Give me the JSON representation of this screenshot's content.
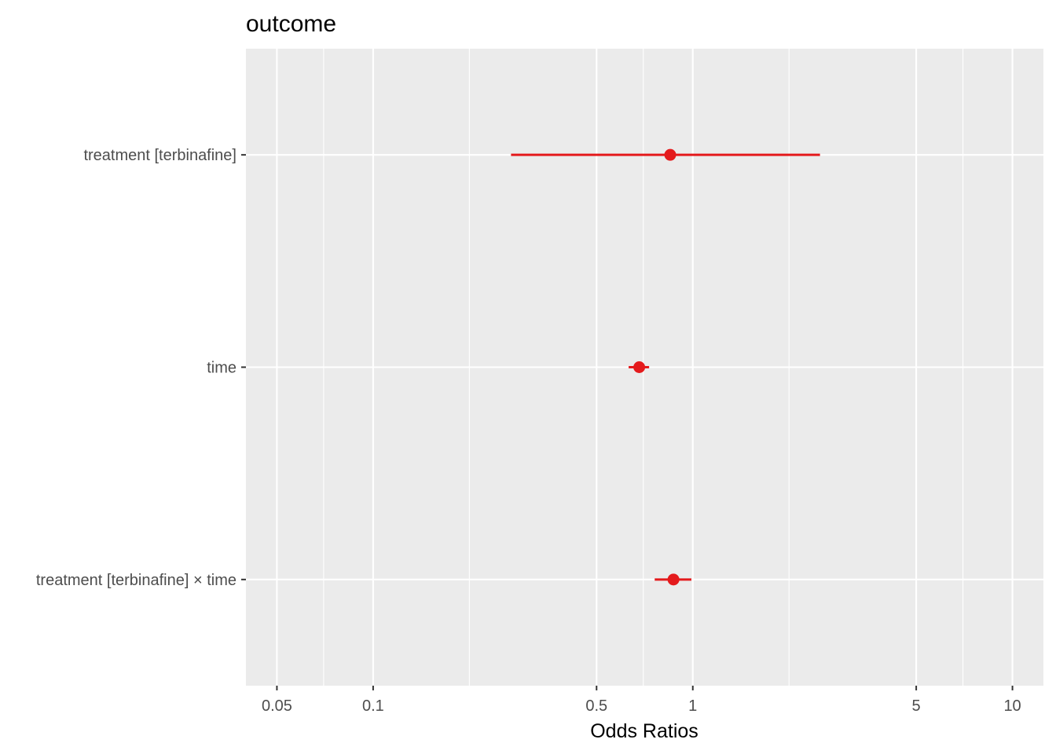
{
  "chart_data": {
    "type": "scatter",
    "subtype": "forest-plot",
    "title": "outcome",
    "xlabel": "Odds Ratios",
    "ylabel": "",
    "x_scale": "log10",
    "xlim": [
      0.04,
      12.5
    ],
    "x_ticks": [
      {
        "value": 0.05,
        "label": "0.05"
      },
      {
        "value": 0.1,
        "label": "0.1"
      },
      {
        "value": 0.5,
        "label": "0.5"
      },
      {
        "value": 1,
        "label": "1"
      },
      {
        "value": 5,
        "label": "5"
      },
      {
        "value": 10,
        "label": "10"
      }
    ],
    "x_minor_gridlines": [
      0.07,
      0.2,
      0.7,
      2,
      7
    ],
    "terms": [
      {
        "label": "treatment [terbinafine]",
        "estimate": 0.85,
        "conf_low": 0.27,
        "conf_high": 2.5
      },
      {
        "label": "time",
        "estimate": 0.68,
        "conf_low": 0.63,
        "conf_high": 0.73
      },
      {
        "label": "treatment [terbinafine] × time",
        "estimate": 0.87,
        "conf_low": 0.76,
        "conf_high": 0.99
      }
    ],
    "grid": true,
    "legend": "none",
    "colors": {
      "panel_background": "#ebebeb",
      "gridline": "#ffffff",
      "estimate": "#e41a1c",
      "tick_label": "#4d4d4d",
      "tick_mark": "#333333"
    }
  }
}
